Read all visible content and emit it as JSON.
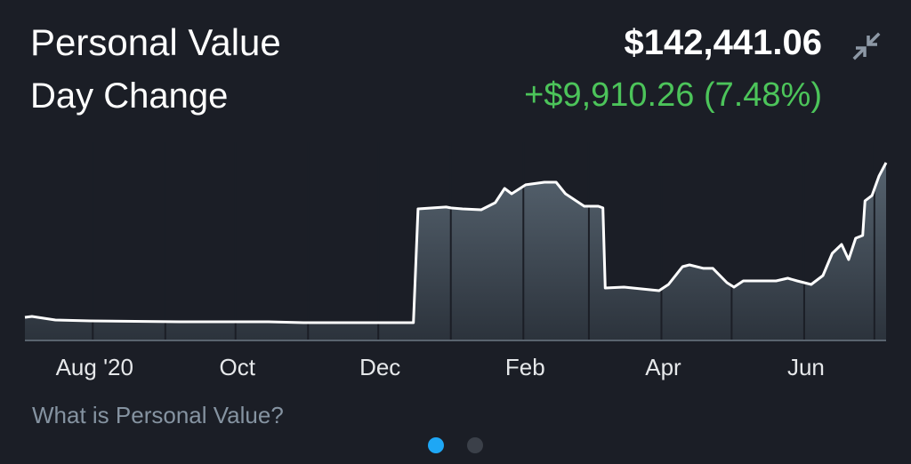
{
  "header": {
    "title": "Personal Value",
    "subtitle": "Day Change",
    "value": "$142,441.06",
    "change": "+$9,910.26 (7.48%)",
    "collapse_icon": "collapse-arrows-icon"
  },
  "link": "What is Personal Value?",
  "pager": {
    "pages": 2,
    "active": 0
  },
  "colors": {
    "background": "#1b1e26",
    "positive": "#4cc45a",
    "line": "#ffffff",
    "fill_top": "#56636f",
    "fill_bottom": "#2c333c",
    "link": "#8593a1",
    "dot_active": "#1ea7f5",
    "dot_inactive": "#3b4049"
  },
  "chart_data": {
    "type": "area",
    "title": "",
    "xlabel": "",
    "ylabel": "",
    "x_ticks": [
      {
        "date": "2020-08-01",
        "label": "Aug '20"
      },
      {
        "date": "2020-10-01",
        "label": "Oct"
      },
      {
        "date": "2020-12-01",
        "label": "Dec"
      },
      {
        "date": "2021-02-01",
        "label": "Feb"
      },
      {
        "date": "2021-04-01",
        "label": "Apr"
      },
      {
        "date": "2021-06-01",
        "label": "Jun"
      }
    ],
    "y_axis_visible": false,
    "grid": "monthly vertical separators",
    "series": [
      {
        "points": [
          [
            "2020-07-03",
            17900
          ],
          [
            "2020-07-06",
            18600
          ],
          [
            "2020-07-16",
            15750
          ],
          [
            "2020-07-31",
            15000
          ],
          [
            "2020-09-07",
            14300
          ],
          [
            "2020-10-15",
            14300
          ],
          [
            "2020-10-30",
            13600
          ],
          [
            "2020-12-16",
            13600
          ],
          [
            "2020-12-18",
            105250
          ],
          [
            "2020-12-30",
            106700
          ],
          [
            "2021-01-01",
            106000
          ],
          [
            "2021-01-06",
            105250
          ],
          [
            "2021-01-14",
            104500
          ],
          [
            "2021-01-20",
            110250
          ],
          [
            "2021-01-24",
            121700
          ],
          [
            "2021-01-27",
            117400
          ],
          [
            "2021-02-02",
            124600
          ],
          [
            "2021-02-10",
            126700
          ],
          [
            "2021-02-15",
            126700
          ],
          [
            "2021-02-19",
            117400
          ],
          [
            "2021-02-27",
            107400
          ],
          [
            "2021-03-05",
            107400
          ],
          [
            "2021-03-07",
            106000
          ],
          [
            "2021-03-08",
            41500
          ],
          [
            "2021-03-16",
            42250
          ],
          [
            "2021-03-31",
            39400
          ],
          [
            "2021-04-04",
            44400
          ],
          [
            "2021-04-10",
            58700
          ],
          [
            "2021-04-13",
            60150
          ],
          [
            "2021-04-19",
            57300
          ],
          [
            "2021-04-23",
            57300
          ],
          [
            "2021-04-29",
            45800
          ],
          [
            "2021-05-02",
            42250
          ],
          [
            "2021-05-06",
            47250
          ],
          [
            "2021-05-14",
            47250
          ],
          [
            "2021-05-20",
            47250
          ],
          [
            "2021-05-25",
            49400
          ],
          [
            "2021-05-29",
            47250
          ],
          [
            "2021-06-04",
            44400
          ],
          [
            "2021-06-09",
            51550
          ],
          [
            "2021-06-13",
            69450
          ],
          [
            "2021-06-17",
            76600
          ],
          [
            "2021-06-20",
            64400
          ],
          [
            "2021-06-23",
            81600
          ],
          [
            "2021-06-26",
            83800
          ],
          [
            "2021-06-27",
            111700
          ],
          [
            "2021-06-30",
            116000
          ],
          [
            "2021-07-03",
            131750
          ],
          [
            "2021-07-06",
            142441.06
          ]
        ]
      }
    ]
  }
}
